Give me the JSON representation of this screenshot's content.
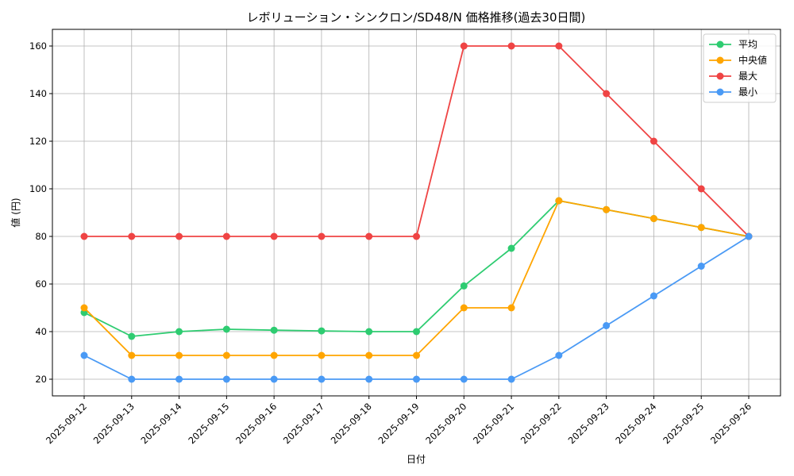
{
  "chart_data": {
    "type": "line",
    "title": "レボリューション・シンクロン/SD48/N 価格推移(過去30日間)",
    "xlabel": "日付",
    "ylabel": "値 (円)",
    "categories": [
      "2025-09-12",
      "2025-09-13",
      "2025-09-14",
      "2025-09-15",
      "2025-09-16",
      "2025-09-17",
      "2025-09-18",
      "2025-09-19",
      "2025-09-20",
      "2025-09-21",
      "2025-09-22",
      "2025-09-23",
      "2025-09-24",
      "2025-09-25",
      "2025-09-26"
    ],
    "ylim": [
      13,
      167
    ],
    "yticks": [
      20,
      40,
      60,
      80,
      100,
      120,
      140,
      160
    ],
    "grid": true,
    "legend_position": "top-right",
    "series": [
      {
        "name": "平均",
        "color": "#2ecc71",
        "values": [
          48,
          38,
          40,
          41,
          40.6,
          40.3,
          40,
          40,
          59.2,
          75,
          95,
          91.25,
          87.5,
          83.75,
          80
        ]
      },
      {
        "name": "中央値",
        "color": "#ffa500",
        "values": [
          50,
          30,
          30,
          30,
          30,
          30,
          30,
          30,
          50,
          50,
          95,
          91.25,
          87.5,
          83.75,
          80
        ]
      },
      {
        "name": "最大",
        "color": "#ef4444",
        "values": [
          80,
          80,
          80,
          80,
          80,
          80,
          80,
          80,
          160,
          160,
          160,
          140,
          120,
          100,
          80
        ]
      },
      {
        "name": "最小",
        "color": "#4a9af5",
        "values": [
          30,
          20,
          20,
          20,
          20,
          20,
          20,
          20,
          20,
          20,
          30,
          42.5,
          55,
          67.5,
          80
        ]
      }
    ]
  }
}
